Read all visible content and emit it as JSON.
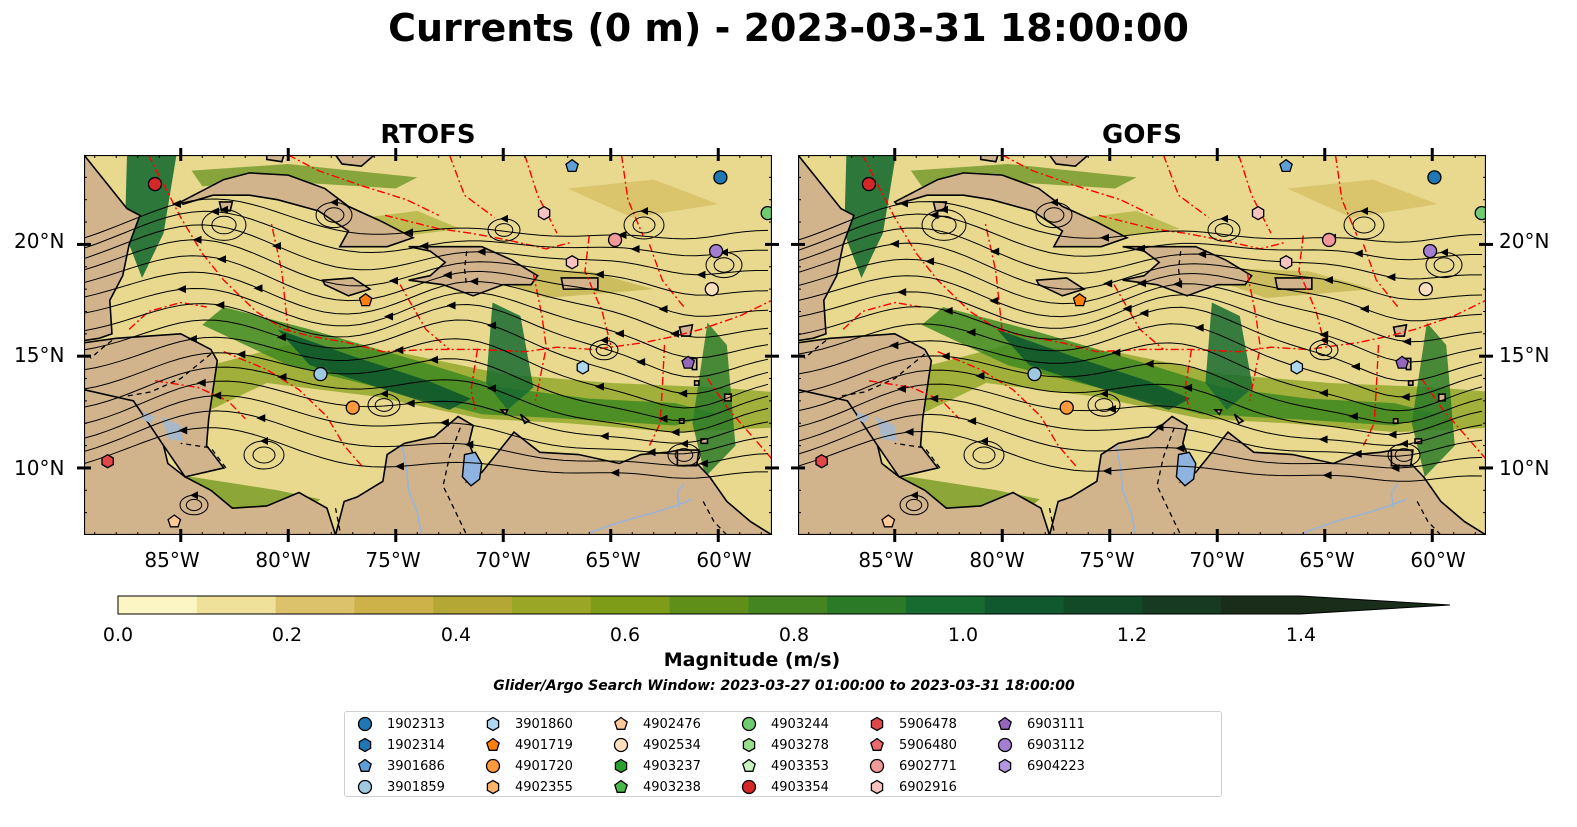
{
  "title": "Currents (0 m) - 2023-03-31 18:00:00",
  "panels": [
    {
      "title": "RTOFS"
    },
    {
      "title": "GOFS"
    }
  ],
  "map": {
    "lon_range": [
      -89.5,
      -57.5
    ],
    "lat_range": [
      7.0,
      24.0
    ],
    "lat_ticks": [
      "20°N",
      "15°N",
      "10°N"
    ],
    "lon_ticks": [
      "85°W",
      "80°W",
      "75°W",
      "70°W",
      "65°W",
      "60°W"
    ],
    "land_color": "#d2b48c",
    "boundary_color": "#ff0000",
    "lake_color": "#8fb3e0"
  },
  "colorbar": {
    "label": "Magnitude (m/s)",
    "ticks": [
      "0.0",
      "0.2",
      "0.4",
      "0.6",
      "0.8",
      "1.0",
      "1.2",
      "1.4"
    ],
    "colors": [
      "#fbf6c4",
      "#efe199",
      "#dcc26a",
      "#cdb24a",
      "#b4a736",
      "#9aa625",
      "#7e9c18",
      "#5f8f19",
      "#458521",
      "#2a7a28",
      "#176b30",
      "#10592e",
      "#124a28",
      "#163a22",
      "#1a2c1a"
    ],
    "min": 0.0,
    "max": 1.6,
    "extend": "max"
  },
  "search_window": "Glider/Argo Search Window: 2023-03-27 01:00:00 to 2023-03-31 18:00:00",
  "legend": [
    {
      "id": "1902313",
      "marker": "circle",
      "color": "#1f77b4"
    },
    {
      "id": "1902314",
      "marker": "hexagon",
      "color": "#1f77b4"
    },
    {
      "id": "3901686",
      "marker": "pentagon",
      "color": "#5d9fd6"
    },
    {
      "id": "3901859",
      "marker": "circle",
      "color": "#9ecae1"
    },
    {
      "id": "3901860",
      "marker": "hexagon",
      "color": "#aed8f2"
    },
    {
      "id": "4901719",
      "marker": "pentagon",
      "color": "#ff7f0e"
    },
    {
      "id": "4901720",
      "marker": "circle",
      "color": "#ff9a3c"
    },
    {
      "id": "4902355",
      "marker": "hexagon",
      "color": "#ffb36b"
    },
    {
      "id": "4902476",
      "marker": "pentagon",
      "color": "#ffc999"
    },
    {
      "id": "4902534",
      "marker": "circle",
      "color": "#ffe0bd"
    },
    {
      "id": "4903237",
      "marker": "hexagon",
      "color": "#2ca02c"
    },
    {
      "id": "4903238",
      "marker": "pentagon",
      "color": "#4cb84c"
    },
    {
      "id": "4903244",
      "marker": "circle",
      "color": "#6fcc6f"
    },
    {
      "id": "4903278",
      "marker": "hexagon",
      "color": "#98df8a"
    },
    {
      "id": "4903353",
      "marker": "pentagon",
      "color": "#c7f2c0"
    },
    {
      "id": "4903354",
      "marker": "circle",
      "color": "#d62728"
    },
    {
      "id": "5906478",
      "marker": "hexagon",
      "color": "#e0474a"
    },
    {
      "id": "5906480",
      "marker": "pentagon",
      "color": "#ea6b6d"
    },
    {
      "id": "6902771",
      "marker": "circle",
      "color": "#f29a99"
    },
    {
      "id": "6902916",
      "marker": "hexagon",
      "color": "#f8c4c0"
    },
    {
      "id": "6903111",
      "marker": "pentagon",
      "color": "#9467bd"
    },
    {
      "id": "6903112",
      "marker": "circle",
      "color": "#a47ed0"
    },
    {
      "id": "6904223",
      "marker": "hexagon",
      "color": "#b495df"
    }
  ],
  "platforms": [
    {
      "id": "1902313",
      "lon": -59.9,
      "lat": 23.0
    },
    {
      "id": "3901686",
      "lon": -66.8,
      "lat": 23.5
    },
    {
      "id": "4903244",
      "lon": -57.7,
      "lat": 21.4
    },
    {
      "id": "4903354",
      "lon": -86.2,
      "lat": 22.7
    },
    {
      "id": "6902771",
      "lon": -64.8,
      "lat": 20.2
    },
    {
      "id": "6903112",
      "lon": -60.1,
      "lat": 19.7
    },
    {
      "id": "6902916",
      "lon": -68.1,
      "lat": 21.4
    },
    {
      "id": "6902916",
      "lon": -66.8,
      "lat": 19.2
    },
    {
      "id": "4902534",
      "lon": -60.3,
      "lat": 18.0
    },
    {
      "id": "4901719",
      "lon": -76.4,
      "lat": 17.5
    },
    {
      "id": "6903111",
      "lon": -61.4,
      "lat": 14.7
    },
    {
      "id": "3901860",
      "lon": -66.3,
      "lat": 14.5
    },
    {
      "id": "3901859",
      "lon": -78.5,
      "lat": 14.2
    },
    {
      "id": "4901720",
      "lon": -77.0,
      "lat": 12.7
    },
    {
      "id": "5906478",
      "lon": -88.4,
      "lat": 10.3
    },
    {
      "id": "4902476",
      "lon": -85.3,
      "lat": 7.6
    }
  ]
}
